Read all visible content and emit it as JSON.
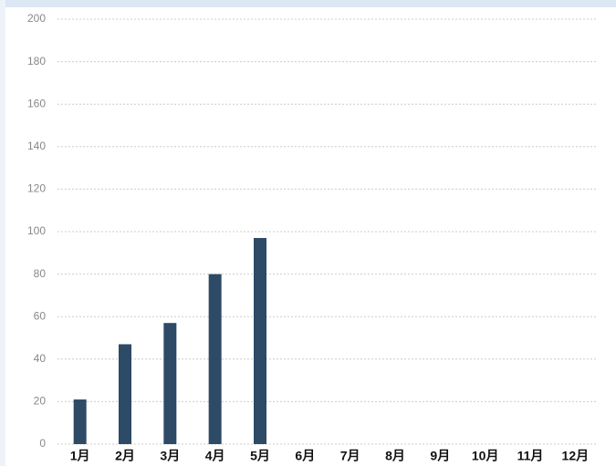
{
  "chart_data": {
    "type": "bar",
    "categories": [
      "1月",
      "2月",
      "3月",
      "4月",
      "5月",
      "6月",
      "7月",
      "8月",
      "9月",
      "10月",
      "11月",
      "12月"
    ],
    "values": [
      21,
      47,
      57,
      80,
      97,
      null,
      null,
      null,
      null,
      null,
      null,
      null
    ],
    "color": "#2d4a66",
    "ylim": [
      0,
      200
    ],
    "yticks": [
      0,
      20,
      40,
      60,
      80,
      100,
      120,
      140,
      160,
      180,
      200
    ],
    "grid": true
  }
}
